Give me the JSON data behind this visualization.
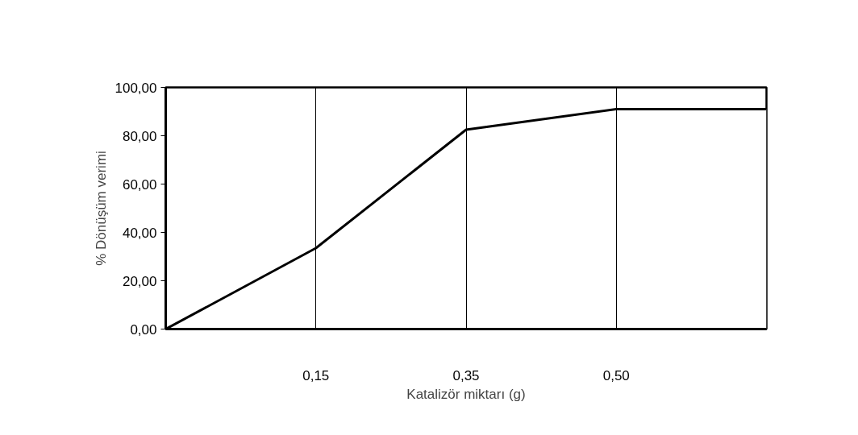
{
  "chart_data": {
    "type": "area",
    "xlabel": "Katalizör miktarı (g)",
    "ylabel": "% Dönüşüm verimi",
    "categories": [
      null,
      "0,15",
      "0,35",
      "0,50",
      null
    ],
    "series": [
      {
        "color": "#ffffff",
        "values": [
          0,
          33.5,
          82.5,
          91,
          91
        ]
      }
    ],
    "ylim": [
      0,
      100
    ],
    "yticks": [
      {
        "value": 0,
        "label": "0,00"
      },
      {
        "value": 20,
        "label": "20,00"
      },
      {
        "value": 40,
        "label": "40,00"
      },
      {
        "value": 60,
        "label": "60,00"
      },
      {
        "value": 80,
        "label": "80,00"
      },
      {
        "value": 100,
        "label": "100,00"
      }
    ],
    "grid": "x"
  }
}
